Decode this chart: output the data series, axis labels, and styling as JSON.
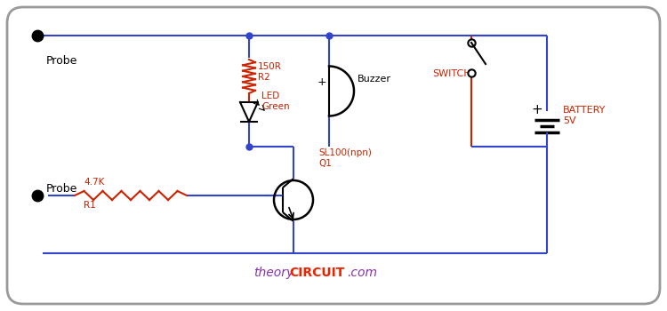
{
  "border_color": "#999999",
  "blue": "#3344cc",
  "red": "#cc2200",
  "black": "#000000",
  "purple": "#8833aa",
  "orange_red": "#ee2200",
  "r2_label": "150R",
  "r2_sub": "R2",
  "led_label": "LED",
  "led_sub": "Green",
  "buzzer_label": "Buzzer",
  "switch_label": "SWITCH",
  "battery_label": "BATTERY",
  "battery_sub": "5V",
  "r1_label": "4.7K",
  "r1_sub": "R1",
  "tr_label": "SL100(npn)",
  "tr_sub": "Q1",
  "probe_label": "Probe",
  "watermark_theory": "theory",
  "watermark_circuit": "CIRCUIT",
  "watermark_com": ".com"
}
